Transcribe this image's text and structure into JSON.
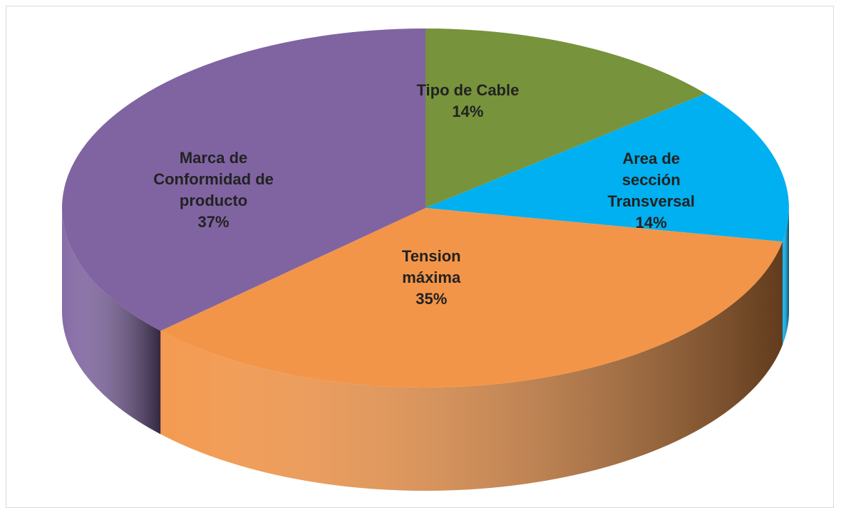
{
  "chart_data": {
    "type": "pie",
    "categories": [
      "Tipo de Cable",
      "Area de sección Transversal",
      "Tension máxima",
      "Marca de Conformidad de producto"
    ],
    "values": [
      14,
      14,
      35,
      37
    ],
    "value_labels": [
      "14%",
      "14%",
      "35%",
      "37%"
    ],
    "colors": [
      "#77933c",
      "#00b0f0",
      "#f39548",
      "#8064a2"
    ]
  }
}
